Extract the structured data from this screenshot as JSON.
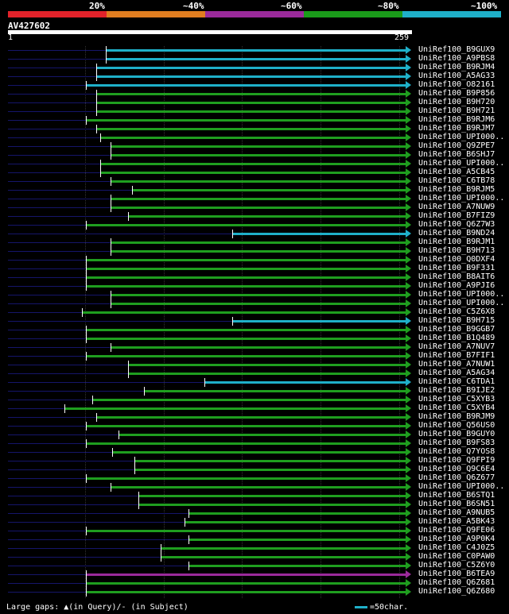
{
  "legend": {
    "labels": [
      "20%",
      "~40%",
      "~60%",
      "~80%",
      "~100%"
    ],
    "colors": [
      "#e2222a",
      "#e07d20",
      "#9b2a9b",
      "#1a9b1a",
      "#1fb0c9"
    ]
  },
  "query": {
    "name": "AV427602",
    "start": "1",
    "end": "259"
  },
  "colors": {
    "green": "#1f9e1f",
    "cyan": "#1fb0c9",
    "purple": "#9b2a9b",
    "query_line": "#15156a"
  },
  "hits": [
    {
      "name": "UniRef100_B9GUX9",
      "color": "cyan",
      "start_fraction": 0.245
    },
    {
      "name": "UniRef100_A9PBS8",
      "color": "cyan",
      "start_fraction": 0.245
    },
    {
      "name": "UniRef100_B9RJM4",
      "color": "cyan",
      "start_fraction": 0.22
    },
    {
      "name": "UniRef100_A5AG33",
      "color": "cyan",
      "start_fraction": 0.22
    },
    {
      "name": "UniRef100_O82161",
      "color": "cyan",
      "start_fraction": 0.195
    },
    {
      "name": "UniRef100_B9P856",
      "color": "green",
      "start_fraction": 0.22
    },
    {
      "name": "UniRef100_B9H720",
      "color": "green",
      "start_fraction": 0.22
    },
    {
      "name": "UniRef100_B9H721",
      "color": "green",
      "start_fraction": 0.22
    },
    {
      "name": "UniRef100_B9RJM6",
      "color": "green",
      "start_fraction": 0.195
    },
    {
      "name": "UniRef100_B9RJM7",
      "color": "green",
      "start_fraction": 0.22
    },
    {
      "name": "UniRef100_UPI000..",
      "color": "green",
      "start_fraction": 0.23
    },
    {
      "name": "UniRef100_Q9ZPE7",
      "color": "green",
      "start_fraction": 0.255
    },
    {
      "name": "UniRef100_B6SHJ7",
      "color": "green",
      "start_fraction": 0.255
    },
    {
      "name": "UniRef100_UPI000..",
      "color": "green",
      "start_fraction": 0.23
    },
    {
      "name": "UniRef100_A5CB45",
      "color": "green",
      "start_fraction": 0.23
    },
    {
      "name": "UniRef100_C6TB78",
      "color": "green",
      "start_fraction": 0.255
    },
    {
      "name": "UniRef100_B9RJM5",
      "color": "green",
      "start_fraction": 0.31
    },
    {
      "name": "UniRef100_UPI000..",
      "color": "green",
      "start_fraction": 0.255
    },
    {
      "name": "UniRef100_A7NUW9",
      "color": "green",
      "start_fraction": 0.255
    },
    {
      "name": "UniRef100_B7FIZ9",
      "color": "green",
      "start_fraction": 0.3
    },
    {
      "name": "UniRef100_Q6Z7W3",
      "color": "green",
      "start_fraction": 0.195
    },
    {
      "name": "UniRef100_B9ND24",
      "color": "cyan",
      "start_fraction": 0.56
    },
    {
      "name": "UniRef100_B9RJM1",
      "color": "green",
      "start_fraction": 0.255
    },
    {
      "name": "UniRef100_B9H713",
      "color": "green",
      "start_fraction": 0.255
    },
    {
      "name": "UniRef100_Q0DXF4",
      "color": "green",
      "start_fraction": 0.195
    },
    {
      "name": "UniRef100_B9F331",
      "color": "green",
      "start_fraction": 0.195
    },
    {
      "name": "UniRef100_B8AIT6",
      "color": "green",
      "start_fraction": 0.195
    },
    {
      "name": "UniRef100_A9PJI6",
      "color": "green",
      "start_fraction": 0.195
    },
    {
      "name": "UniRef100_UPI000..",
      "color": "green",
      "start_fraction": 0.255
    },
    {
      "name": "UniRef100_UPI000..",
      "color": "green",
      "start_fraction": 0.255
    },
    {
      "name": "UniRef100_C5Z6X8",
      "color": "green",
      "start_fraction": 0.185
    },
    {
      "name": "UniRef100_B9H715",
      "color": "cyan",
      "start_fraction": 0.56
    },
    {
      "name": "UniRef100_B9GGB7",
      "color": "green",
      "start_fraction": 0.195
    },
    {
      "name": "UniRef100_B1Q489",
      "color": "green",
      "start_fraction": 0.195
    },
    {
      "name": "UniRef100_A7NUV7",
      "color": "green",
      "start_fraction": 0.255
    },
    {
      "name": "UniRef100_B7FIF1",
      "color": "green",
      "start_fraction": 0.195
    },
    {
      "name": "UniRef100_A7NUW1",
      "color": "green",
      "start_fraction": 0.3
    },
    {
      "name": "UniRef100_A5AG34",
      "color": "green",
      "start_fraction": 0.3
    },
    {
      "name": "UniRef100_C6TDA1",
      "color": "cyan",
      "start_fraction": 0.49
    },
    {
      "name": "UniRef100_B9IJE2",
      "color": "green",
      "start_fraction": 0.34
    },
    {
      "name": "UniRef100_C5XYB3",
      "color": "green",
      "start_fraction": 0.21
    },
    {
      "name": "UniRef100_C5XYB4",
      "color": "green",
      "start_fraction": 0.14
    },
    {
      "name": "UniRef100_B9RJM9",
      "color": "green",
      "start_fraction": 0.22
    },
    {
      "name": "UniRef100_Q56US0",
      "color": "green",
      "start_fraction": 0.195
    },
    {
      "name": "UniRef100_B9GUY0",
      "color": "green",
      "start_fraction": 0.275
    },
    {
      "name": "UniRef100_B9FS83",
      "color": "green",
      "start_fraction": 0.195
    },
    {
      "name": "UniRef100_Q7YOS8",
      "color": "green",
      "start_fraction": 0.26
    },
    {
      "name": "UniRef100_Q9FPI9",
      "color": "green",
      "start_fraction": 0.315
    },
    {
      "name": "UniRef100_Q9C6E4",
      "color": "green",
      "start_fraction": 0.315
    },
    {
      "name": "UniRef100_Q6Z677",
      "color": "green",
      "start_fraction": 0.195
    },
    {
      "name": "UniRef100_UPI000..",
      "color": "green",
      "start_fraction": 0.255
    },
    {
      "name": "UniRef100_B6STQ1",
      "color": "green",
      "start_fraction": 0.325
    },
    {
      "name": "UniRef100_B6SN51",
      "color": "green",
      "start_fraction": 0.325
    },
    {
      "name": "UniRef100_A9NUB5",
      "color": "green",
      "start_fraction": 0.45
    },
    {
      "name": "UniRef100_A5BK43",
      "color": "green",
      "start_fraction": 0.44
    },
    {
      "name": "UniRef100_Q9FE06",
      "color": "green",
      "start_fraction": 0.195
    },
    {
      "name": "UniRef100_A9P0K4",
      "color": "green",
      "start_fraction": 0.45
    },
    {
      "name": "UniRef100_C4J0Z5",
      "color": "green",
      "start_fraction": 0.38
    },
    {
      "name": "UniRef100_C0PAW0",
      "color": "green",
      "start_fraction": 0.38
    },
    {
      "name": "UniRef100_C5Z6Y0",
      "color": "green",
      "start_fraction": 0.45
    },
    {
      "name": "UniRef100_B6TEA9",
      "color": "purple",
      "start_fraction": 0.195
    },
    {
      "name": "UniRef100_Q6Z681",
      "color": "green",
      "start_fraction": 0.195
    },
    {
      "name": "UniRef100_Q6Z680",
      "color": "green",
      "start_fraction": 0.195
    }
  ],
  "footer": {
    "gaps_legend": "Large gaps: ▲(in Query)/- (in Subject)",
    "scale_label": "=50char."
  }
}
